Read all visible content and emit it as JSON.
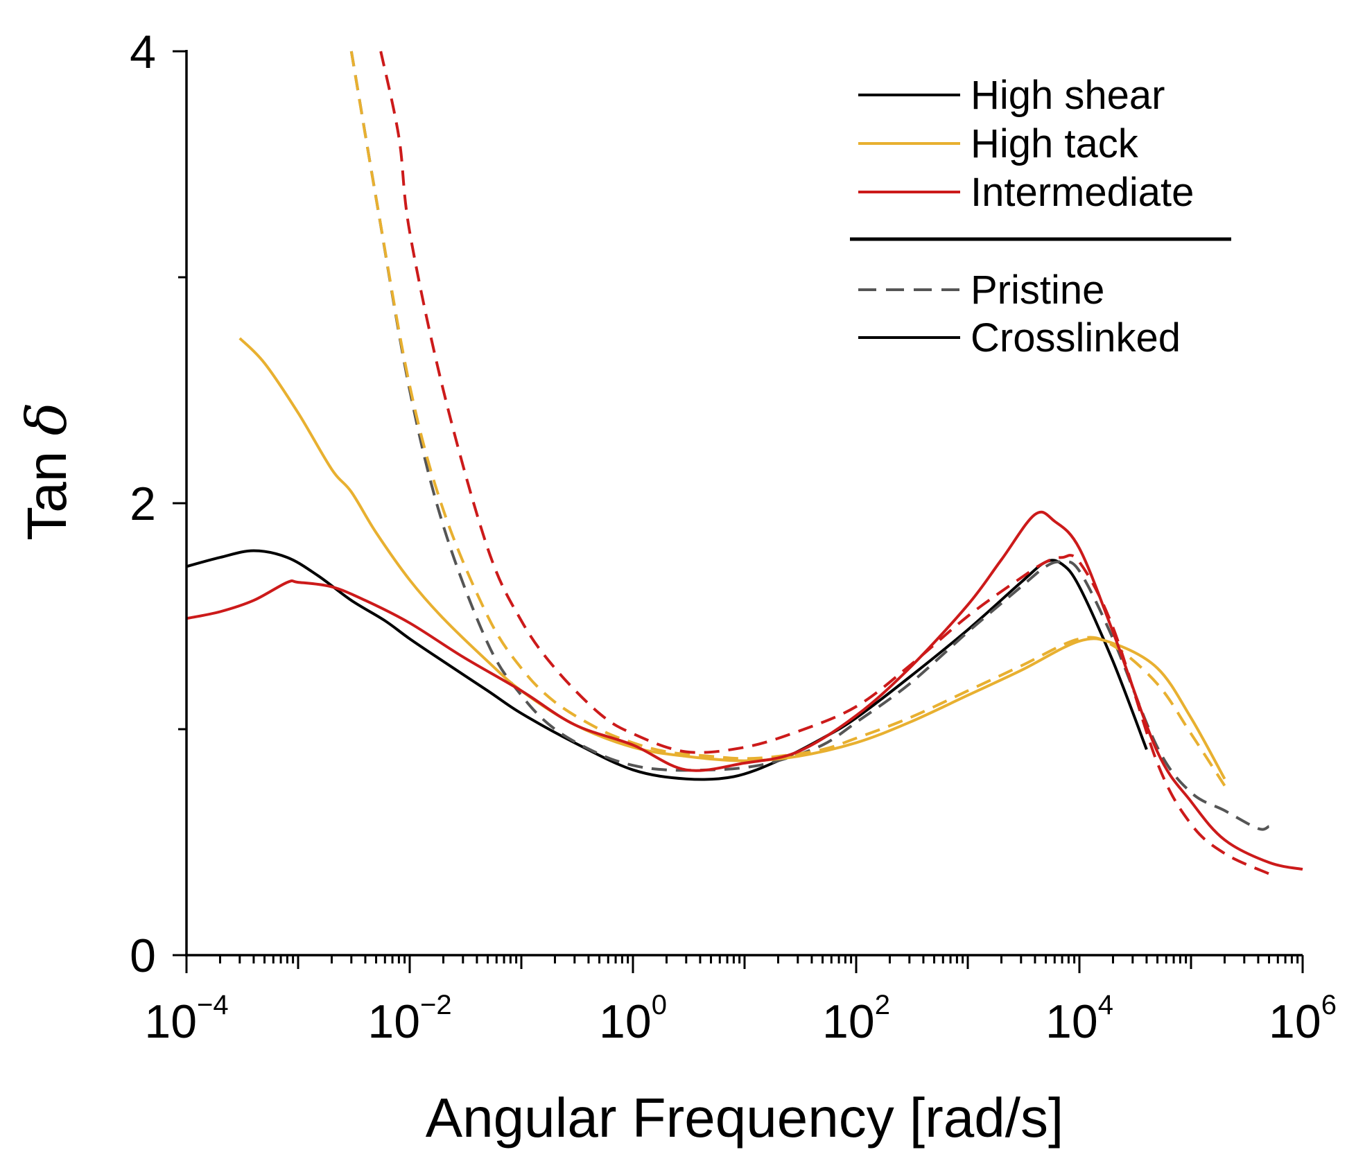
{
  "chart_data": {
    "type": "line",
    "xlabel": "Angular Frequency [rad/s]",
    "ylabel_main": "Tan ",
    "ylabel_symbol": "δ",
    "x_scale": "log",
    "xlim": [
      0.0001,
      1000000
    ],
    "ylim": [
      0,
      4
    ],
    "x_ticks": [
      {
        "base": "10",
        "exp": "−4",
        "value": 0.0001
      },
      {
        "base": "10",
        "exp": "−2",
        "value": 0.01
      },
      {
        "base": "10",
        "exp": "0",
        "value": 1
      },
      {
        "base": "10",
        "exp": "2",
        "value": 100
      },
      {
        "base": "10",
        "exp": "4",
        "value": 10000
      },
      {
        "base": "10",
        "exp": "6",
        "value": 1000000
      }
    ],
    "y_ticks": [
      {
        "label": "0",
        "value": 0
      },
      {
        "label": "2",
        "value": 2
      },
      {
        "label": "4",
        "value": 4
      }
    ],
    "y_minor_ticks": [
      1,
      3
    ],
    "grid": false,
    "legend_placement": "top-right",
    "legend": {
      "groups": [
        {
          "label": "High shear",
          "color": "#000000",
          "style": "solid"
        },
        {
          "label": "High tack",
          "color": "#E8B030",
          "style": "solid"
        },
        {
          "label": "Intermediate",
          "color": "#CC1A1A",
          "style": "solid"
        }
      ],
      "styles": [
        {
          "label": "Pristine",
          "color": "#555555",
          "style": "dashed"
        },
        {
          "label": "Crosslinked",
          "color": "#000000",
          "style": "solid"
        }
      ]
    },
    "series": [
      {
        "group": "High shear",
        "state": "Crosslinked",
        "color": "#000000",
        "style": "solid",
        "x": [
          0.0001,
          0.0002,
          0.0004,
          0.0008,
          0.0015,
          0.003,
          0.006,
          0.01,
          0.02,
          0.05,
          0.1,
          0.3,
          1,
          3,
          8,
          20,
          50,
          100,
          300,
          1000,
          3000,
          5000,
          7000,
          10000,
          20000,
          40000
        ],
        "y": [
          1.72,
          1.76,
          1.79,
          1.76,
          1.68,
          1.57,
          1.48,
          1.4,
          1.3,
          1.17,
          1.07,
          0.94,
          0.82,
          0.78,
          0.79,
          0.86,
          0.96,
          1.05,
          1.23,
          1.44,
          1.65,
          1.74,
          1.73,
          1.63,
          1.3,
          0.91
        ]
      },
      {
        "group": "High shear",
        "state": "Pristine",
        "color": "#555555",
        "style": "dashed",
        "x": [
          0.003,
          0.005,
          0.01,
          0.02,
          0.05,
          0.1,
          0.2,
          0.5,
          1,
          2,
          5,
          10,
          20,
          50,
          100,
          300,
          1000,
          3000,
          5000,
          7000,
          10000,
          20000,
          50000,
          100000,
          200000,
          400000,
          500000
        ],
        "y": [
          4.0,
          3.35,
          2.5,
          1.9,
          1.38,
          1.15,
          1.0,
          0.89,
          0.84,
          0.82,
          0.82,
          0.83,
          0.86,
          0.93,
          1.03,
          1.2,
          1.43,
          1.63,
          1.72,
          1.74,
          1.7,
          1.4,
          0.92,
          0.72,
          0.64,
          0.56,
          0.57
        ]
      },
      {
        "group": "High tack",
        "state": "Crosslinked",
        "color": "#E8B030",
        "style": "solid",
        "x": [
          0.0003,
          0.0005,
          0.001,
          0.002,
          0.003,
          0.005,
          0.01,
          0.02,
          0.05,
          0.1,
          0.3,
          1,
          3,
          10,
          30,
          100,
          300,
          1000,
          3000,
          10000,
          20000,
          50000,
          100000,
          200000
        ],
        "y": [
          2.73,
          2.62,
          2.4,
          2.15,
          2.05,
          1.87,
          1.66,
          1.49,
          1.3,
          1.17,
          1.02,
          0.92,
          0.88,
          0.86,
          0.88,
          0.94,
          1.03,
          1.15,
          1.26,
          1.39,
          1.38,
          1.27,
          1.05,
          0.78
        ]
      },
      {
        "group": "High tack",
        "state": "Pristine",
        "color": "#E8B030",
        "style": "dashed",
        "x": [
          0.003,
          0.005,
          0.01,
          0.02,
          0.05,
          0.1,
          0.2,
          0.5,
          1,
          2,
          5,
          10,
          20,
          50,
          100,
          300,
          1000,
          3000,
          10000,
          20000,
          50000,
          100000,
          200000
        ],
        "y": [
          4.0,
          3.35,
          2.52,
          1.97,
          1.5,
          1.27,
          1.12,
          1.0,
          0.94,
          0.9,
          0.88,
          0.87,
          0.88,
          0.91,
          0.96,
          1.05,
          1.17,
          1.28,
          1.4,
          1.37,
          1.2,
          0.98,
          0.75
        ]
      },
      {
        "group": "Intermediate",
        "state": "Crosslinked",
        "color": "#CC1A1A",
        "style": "solid",
        "x": [
          0.0001,
          0.0002,
          0.0004,
          0.0008,
          0.001,
          0.002,
          0.004,
          0.01,
          0.03,
          0.1,
          0.3,
          1,
          3,
          10,
          30,
          100,
          300,
          1000,
          2000,
          4000,
          6000,
          10000,
          20000,
          50000,
          100000,
          200000,
          500000,
          1000000
        ],
        "y": [
          1.49,
          1.52,
          1.57,
          1.65,
          1.65,
          1.63,
          1.57,
          1.47,
          1.32,
          1.17,
          1.02,
          0.93,
          0.82,
          0.85,
          0.9,
          1.06,
          1.27,
          1.55,
          1.75,
          1.95,
          1.92,
          1.8,
          1.43,
          0.9,
          0.68,
          0.51,
          0.41,
          0.38
        ]
      },
      {
        "group": "Intermediate",
        "state": "Pristine",
        "color": "#CC1A1A",
        "style": "dashed",
        "x": [
          0.0055,
          0.008,
          0.01,
          0.02,
          0.05,
          0.1,
          0.2,
          0.5,
          1,
          3,
          10,
          30,
          100,
          300,
          1000,
          3000,
          5000,
          7000,
          10000,
          20000,
          50000,
          100000,
          200000,
          500000
        ],
        "y": [
          4.0,
          3.62,
          3.2,
          2.5,
          1.8,
          1.48,
          1.27,
          1.07,
          0.98,
          0.9,
          0.92,
          0.99,
          1.1,
          1.28,
          1.5,
          1.67,
          1.74,
          1.76,
          1.74,
          1.45,
          0.85,
          0.58,
          0.45,
          0.36
        ]
      }
    ]
  }
}
